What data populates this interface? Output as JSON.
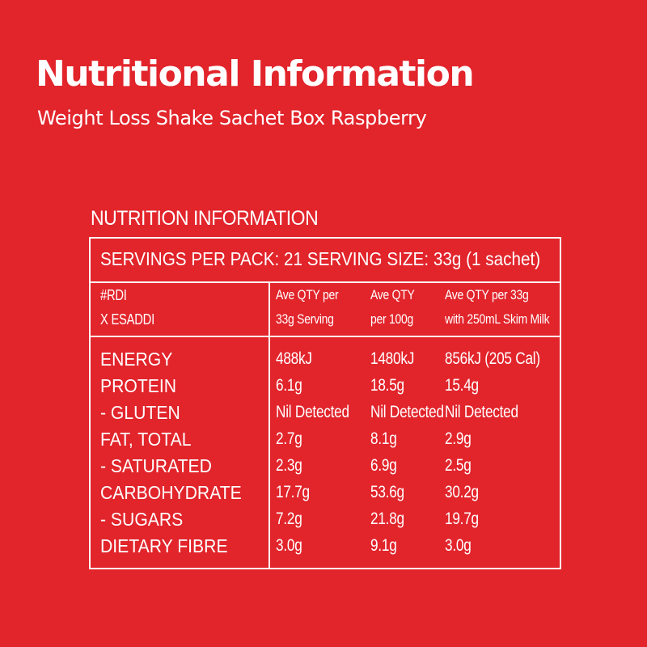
{
  "header": {
    "title": "Nutritional Information",
    "subtitle": "Weight Loss Shake Sachet Box Raspberry"
  },
  "panel": {
    "title": "NUTRITION INFORMATION",
    "servings_line": "SERVINGS PER PACK: 21   SERVING SIZE: 33g (1 sachet)",
    "header_left": [
      "#RDI",
      "X ESADDI"
    ],
    "column_headers": [
      [
        "Ave QTY per",
        "33g Serving"
      ],
      [
        "Ave QTY",
        "per 100g"
      ],
      [
        "Ave QTY per 33g",
        "with 250mL Skim Milk"
      ]
    ],
    "rows": [
      {
        "label": "ENERGY",
        "values": [
          "488kJ",
          "1480kJ",
          "856kJ (205 Cal)"
        ]
      },
      {
        "label": "PROTEIN",
        "values": [
          "6.1g",
          "18.5g",
          "15.4g"
        ]
      },
      {
        "label": " - GLUTEN",
        "values": [
          "Nil Detected",
          "Nil Detected",
          "Nil Detected"
        ]
      },
      {
        "label": "FAT, TOTAL",
        "values": [
          "2.7g",
          "8.1g",
          "2.9g"
        ]
      },
      {
        "label": " - SATURATED",
        "values": [
          "2.3g",
          "6.9g",
          "2.5g"
        ]
      },
      {
        "label": "CARBOHYDRATE",
        "values": [
          "17.7g",
          "53.6g",
          "30.2g"
        ]
      },
      {
        "label": " - SUGARS",
        "values": [
          "7.2g",
          "21.8g",
          "19.7g"
        ]
      },
      {
        "label": "DIETARY FIBRE",
        "values": [
          "3.0g",
          "9.1g",
          "3.0g"
        ]
      }
    ]
  },
  "colors": {
    "background": "#e2242b",
    "text": "#ffffff"
  }
}
